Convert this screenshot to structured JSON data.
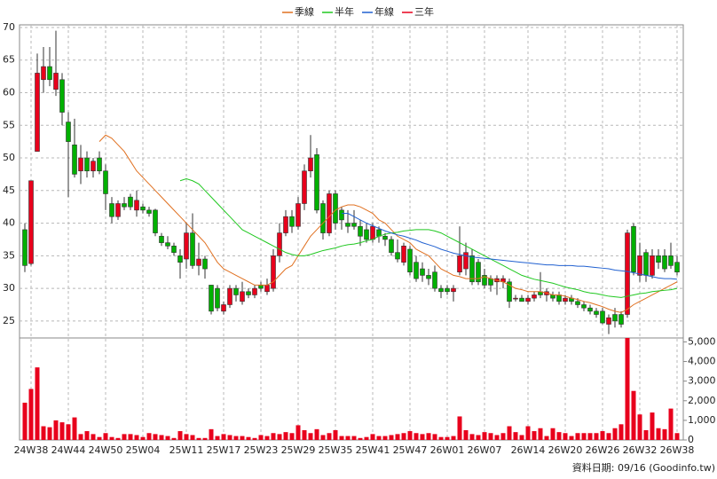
{
  "chart_data": {
    "type": "candlestick",
    "up_color": "#e8001c",
    "down_color": "#00b000",
    "grid": true,
    "legend": "top",
    "footer": "資料日期: 09/16 (Goodinfo.tw)",
    "categories": [
      null,
      "24W38",
      null,
      null,
      null,
      null,
      null,
      "24W44",
      null,
      null,
      null,
      null,
      null,
      "24W50",
      null,
      null,
      null,
      null,
      null,
      "25W04",
      null,
      null,
      null,
      null,
      null,
      null,
      "25W11",
      null,
      null,
      null,
      null,
      null,
      "25W17",
      null,
      null,
      null,
      null,
      null,
      "25W23",
      null,
      null,
      null,
      null,
      null,
      "25W29",
      null,
      null,
      null,
      null,
      null,
      "25W35",
      null,
      null,
      null,
      null,
      null,
      "25W41",
      null,
      null,
      null,
      null,
      null,
      "25W47",
      null,
      null,
      null,
      null,
      null,
      "26W01",
      null,
      null,
      null,
      null,
      null,
      "26W07",
      null,
      null,
      null,
      null,
      null,
      null,
      "26W14",
      null,
      null,
      null,
      null,
      null,
      "26W20",
      null,
      null,
      null,
      null,
      null,
      "26W26",
      null,
      null,
      null,
      null,
      null,
      "26W32",
      null,
      null,
      null,
      null,
      null,
      "26W38"
    ],
    "ylim": [
      22.4,
      70.4
    ],
    "yticks": [
      25,
      30,
      35,
      40,
      45,
      50,
      55,
      60,
      65,
      70
    ],
    "candles": [
      [
        39,
        40,
        32.5,
        33.5
      ],
      [
        33.8,
        46.5,
        33.5,
        46.5
      ],
      [
        51,
        66,
        51,
        63
      ],
      [
        62,
        67,
        60,
        64
      ],
      [
        64,
        67,
        61,
        62
      ],
      [
        60.5,
        69.5,
        59.5,
        63
      ],
      [
        62,
        63,
        55,
        57
      ],
      [
        55.5,
        57,
        44,
        52.5
      ],
      [
        52,
        56,
        47,
        47.5
      ],
      [
        48,
        52,
        46,
        50
      ],
      [
        50,
        51,
        47,
        48
      ],
      [
        48,
        50,
        47,
        49.5
      ],
      [
        50,
        51,
        47.5,
        48
      ],
      [
        48,
        49,
        42,
        44.5
      ],
      [
        43,
        44,
        40,
        41
      ],
      [
        41,
        43.5,
        40.5,
        43
      ],
      [
        43,
        44,
        42,
        42.5
      ],
      [
        44,
        44.5,
        42,
        42.5
      ],
      [
        42,
        45,
        41,
        43.5
      ],
      [
        42.5,
        43,
        41.5,
        42
      ],
      [
        42,
        42.5,
        41,
        41.5
      ],
      [
        42,
        42.2,
        38,
        38.5
      ],
      [
        38,
        38.5,
        36.5,
        37
      ],
      [
        37,
        38,
        36,
        36.5
      ],
      [
        36.5,
        37,
        35,
        35.5
      ],
      [
        35,
        36,
        31.5,
        34
      ],
      [
        34.5,
        40,
        33,
        38.5
      ],
      [
        38.5,
        41.5,
        33,
        33.5
      ],
      [
        33.5,
        37,
        32,
        34.5
      ],
      [
        34.5,
        35,
        31.5,
        33
      ],
      [
        30.5,
        30.5,
        26,
        26.5
      ],
      [
        30,
        30.5,
        26.5,
        27
      ],
      [
        26.5,
        28,
        26,
        27.5
      ],
      [
        27.5,
        30.5,
        27,
        30
      ],
      [
        30,
        30.5,
        28,
        29
      ],
      [
        28,
        31,
        27.5,
        29.5
      ],
      [
        29.5,
        30,
        28.5,
        29
      ],
      [
        29,
        30.5,
        28.5,
        30
      ],
      [
        30.5,
        31,
        29.5,
        30
      ],
      [
        29.5,
        31.5,
        29,
        30.5
      ],
      [
        30,
        36,
        29.5,
        35
      ],
      [
        35,
        40,
        34,
        38.5
      ],
      [
        38.5,
        42,
        38,
        41
      ],
      [
        41,
        42,
        38.5,
        39.5
      ],
      [
        39.5,
        44,
        39,
        43
      ],
      [
        43,
        49,
        42,
        48
      ],
      [
        48,
        53.5,
        47,
        50
      ],
      [
        50.5,
        51.5,
        41.5,
        42
      ],
      [
        43,
        43.5,
        37.5,
        38.5
      ],
      [
        38.5,
        45,
        38,
        44.5
      ],
      [
        44.5,
        45,
        39,
        40
      ],
      [
        42,
        42.5,
        39,
        40.5
      ],
      [
        40,
        42,
        38.5,
        39.5
      ],
      [
        40,
        42,
        39,
        39.5
      ],
      [
        39.5,
        40.5,
        36.5,
        38
      ],
      [
        39,
        40,
        37,
        37.5
      ],
      [
        37.5,
        40,
        37,
        39.5
      ],
      [
        39,
        39.5,
        37,
        38
      ],
      [
        38,
        38.5,
        36.5,
        37.5
      ],
      [
        37.5,
        38,
        35,
        35.5
      ],
      [
        35.5,
        37.5,
        34,
        34.5
      ],
      [
        34,
        37,
        33.5,
        36.5
      ],
      [
        36,
        36.5,
        32,
        32.5
      ],
      [
        34,
        35,
        31,
        31.5
      ],
      [
        33,
        34,
        31,
        32
      ],
      [
        32,
        33,
        30.5,
        31.5
      ],
      [
        32.5,
        33.5,
        29.5,
        30
      ],
      [
        30,
        30.5,
        28.5,
        29.5
      ],
      [
        30,
        30.5,
        29,
        29.5
      ],
      [
        29.5,
        30.5,
        28,
        30
      ],
      [
        32.5,
        39.5,
        32,
        35
      ],
      [
        33,
        37,
        32,
        35.5
      ],
      [
        35,
        36,
        30.5,
        31
      ],
      [
        34,
        34.5,
        30.5,
        31
      ],
      [
        32,
        33,
        30,
        30.5
      ],
      [
        31.5,
        32,
        29.5,
        30.5
      ],
      [
        31,
        32,
        29,
        31.5
      ],
      [
        31,
        32,
        30,
        31.5
      ],
      [
        31,
        31.5,
        27,
        28
      ],
      [
        28.5,
        29,
        28,
        28.5
      ],
      [
        28.5,
        29,
        28,
        28
      ],
      [
        28,
        29,
        27.5,
        28.5
      ],
      [
        28.5,
        29.5,
        28,
        29
      ],
      [
        29.5,
        32.5,
        28.5,
        29
      ],
      [
        29,
        30,
        28,
        29.5
      ],
      [
        29,
        29.5,
        28,
        28.5
      ],
      [
        29,
        29.5,
        27.5,
        28
      ],
      [
        28,
        29,
        27.5,
        28.5
      ],
      [
        28.5,
        29,
        27.5,
        28
      ],
      [
        28,
        28.5,
        27,
        27.5
      ],
      [
        27.5,
        28,
        26.5,
        27
      ],
      [
        27,
        27.5,
        26,
        26.5
      ],
      [
        26.5,
        27,
        25.5,
        26
      ],
      [
        26.5,
        27,
        24.5,
        24.7
      ],
      [
        24.5,
        26,
        23,
        25.5
      ],
      [
        26,
        27,
        24,
        25
      ],
      [
        26,
        26.5,
        24,
        24.5
      ],
      [
        26,
        39,
        25.5,
        38.5
      ],
      [
        39.5,
        40,
        32,
        32.5
      ],
      [
        32,
        37,
        31,
        35
      ],
      [
        35.5,
        36,
        31,
        32
      ],
      [
        32,
        36,
        31.5,
        35
      ],
      [
        35,
        36,
        33,
        34
      ],
      [
        35,
        36,
        32.5,
        33
      ],
      [
        35,
        37,
        33,
        33.5
      ],
      [
        34,
        35,
        32,
        32.5
      ]
    ],
    "series": [
      {
        "name": "季線",
        "color": "#e07020",
        "values": [
          null,
          null,
          null,
          null,
          null,
          null,
          null,
          null,
          null,
          null,
          null,
          null,
          52.5,
          53.5,
          53,
          52,
          51,
          49.5,
          48,
          47,
          46,
          45,
          44,
          43,
          42,
          41,
          40,
          39,
          38,
          37,
          35.5,
          34,
          33,
          32.5,
          32,
          31.5,
          31,
          30.5,
          30.5,
          30.5,
          31,
          32,
          33,
          33.5,
          35,
          36.5,
          38,
          39,
          40,
          41,
          42,
          42.5,
          42.8,
          42.8,
          42.5,
          42,
          41.5,
          40.5,
          40,
          39,
          38,
          37.5,
          37,
          36,
          35.5,
          35,
          34,
          33,
          32.5,
          32,
          31.8,
          31.5,
          31.5,
          31.5,
          31.8,
          31.5,
          31.2,
          31,
          30.5,
          30,
          29.8,
          29.5,
          29.5,
          29.5,
          29.3,
          29,
          29,
          28.8,
          28.5,
          28.3,
          28,
          27.8,
          27.5,
          27.2,
          26.8,
          26.5,
          26.3,
          26.8,
          27.5,
          28,
          28.5,
          29,
          29.5,
          30,
          30.5,
          31
        ]
      },
      {
        "name": "半年",
        "color": "#20c820",
        "values": [
          null,
          null,
          null,
          null,
          null,
          null,
          null,
          null,
          null,
          null,
          null,
          null,
          null,
          null,
          null,
          null,
          null,
          null,
          null,
          null,
          null,
          null,
          null,
          null,
          null,
          46.5,
          46.8,
          46.5,
          46,
          45,
          44,
          43,
          42,
          41,
          40,
          39,
          38.5,
          38,
          37.5,
          37,
          36.5,
          36,
          35.5,
          35.2,
          35,
          35,
          35.2,
          35.5,
          35.8,
          36,
          36.2,
          36.5,
          36.7,
          36.8,
          37,
          37.3,
          37.5,
          38,
          38.3,
          38.5,
          38.6,
          38.8,
          38.9,
          39,
          39,
          39,
          38.8,
          38.5,
          38,
          37.5,
          37,
          36.5,
          36,
          35.5,
          35,
          34.5,
          34,
          33.5,
          33,
          32.5,
          32,
          31.7,
          31.4,
          31.2,
          31,
          30.8,
          30.5,
          30.2,
          30,
          29.8,
          29.5,
          29.3,
          29.2,
          29,
          28.8,
          28.7,
          28.6,
          28.8,
          29,
          29.2,
          29.3,
          29.5,
          29.6,
          29.7,
          29.8,
          30
        ]
      },
      {
        "name": "年線",
        "color": "#2060d0",
        "values": [
          null,
          null,
          null,
          null,
          null,
          null,
          null,
          null,
          null,
          null,
          null,
          null,
          null,
          null,
          null,
          null,
          null,
          null,
          null,
          null,
          null,
          null,
          null,
          null,
          null,
          null,
          null,
          null,
          null,
          null,
          null,
          null,
          null,
          null,
          null,
          null,
          null,
          null,
          null,
          null,
          null,
          null,
          null,
          null,
          null,
          null,
          null,
          null,
          null,
          null,
          null,
          41.5,
          41.5,
          41,
          40.5,
          40,
          39.6,
          39.2,
          38.8,
          38.5,
          38.2,
          38,
          37.7,
          37.4,
          37,
          36.7,
          36.4,
          36,
          35.7,
          35.4,
          35.2,
          35,
          34.8,
          34.7,
          34.6,
          34.5,
          34.4,
          34.3,
          34.2,
          34.1,
          34,
          33.9,
          33.8,
          33.7,
          33.6,
          33.6,
          33.5,
          33.5,
          33.5,
          33.4,
          33.4,
          33.3,
          33.2,
          33.1,
          33,
          32.8,
          32.7,
          32.6,
          32.4,
          32.2,
          32,
          31.8,
          31.6,
          31.5,
          31.5,
          31.4
        ]
      },
      {
        "name": "三年",
        "color": "#e8001c",
        "values": [
          null,
          null,
          null,
          null,
          null,
          null,
          null,
          null,
          null,
          null,
          null,
          null,
          null,
          null,
          null,
          null,
          null,
          null,
          null,
          null,
          null,
          null,
          null,
          null,
          null,
          null,
          null,
          null,
          null,
          null,
          null,
          null,
          null,
          null,
          null,
          null,
          null,
          null,
          null,
          null,
          null,
          null,
          null,
          null,
          null,
          null,
          null,
          null,
          null,
          null,
          null,
          null,
          null,
          null,
          null,
          null,
          null,
          null,
          null,
          null,
          null,
          null,
          null,
          null,
          null,
          null,
          null,
          null,
          null,
          null,
          null,
          null,
          null,
          null,
          null,
          null,
          null,
          null,
          null,
          null,
          null,
          null,
          null,
          null,
          null,
          null,
          null,
          null,
          null,
          null,
          null,
          null,
          null,
          null,
          null,
          null,
          null,
          null,
          null,
          null,
          null,
          null,
          null,
          null,
          null,
          null
        ]
      }
    ],
    "volume": {
      "color": "#e8001c",
      "ylim": [
        0,
        5200
      ],
      "yticks": [
        0,
        {
          "value": 1000,
          "label": "1,000"
        },
        {
          "value": 2000,
          "label": "2,000"
        },
        {
          "value": 3000,
          "label": "3,000"
        },
        {
          "value": 4000,
          "label": "4,000"
        },
        {
          "value": 5000,
          "label": "5,000"
        }
      ],
      "values": [
        1900,
        2600,
        3700,
        700,
        650,
        1000,
        900,
        800,
        1150,
        300,
        450,
        300,
        150,
        350,
        150,
        100,
        300,
        300,
        250,
        150,
        350,
        300,
        250,
        200,
        100,
        450,
        300,
        250,
        100,
        100,
        550,
        200,
        300,
        250,
        200,
        200,
        150,
        100,
        250,
        200,
        350,
        300,
        400,
        350,
        750,
        500,
        350,
        550,
        250,
        350,
        500,
        200,
        200,
        200,
        100,
        150,
        300,
        200,
        200,
        250,
        300,
        350,
        450,
        350,
        300,
        350,
        300,
        150,
        150,
        200,
        1200,
        500,
        300,
        250,
        400,
        350,
        250,
        350,
        700,
        400,
        250,
        700,
        450,
        600,
        200,
        600,
        400,
        350,
        200,
        350,
        350,
        350,
        350,
        450,
        350,
        600,
        800,
        5200,
        2500,
        1300,
        500,
        1400,
        600,
        550,
        1600,
        350
      ]
    }
  }
}
